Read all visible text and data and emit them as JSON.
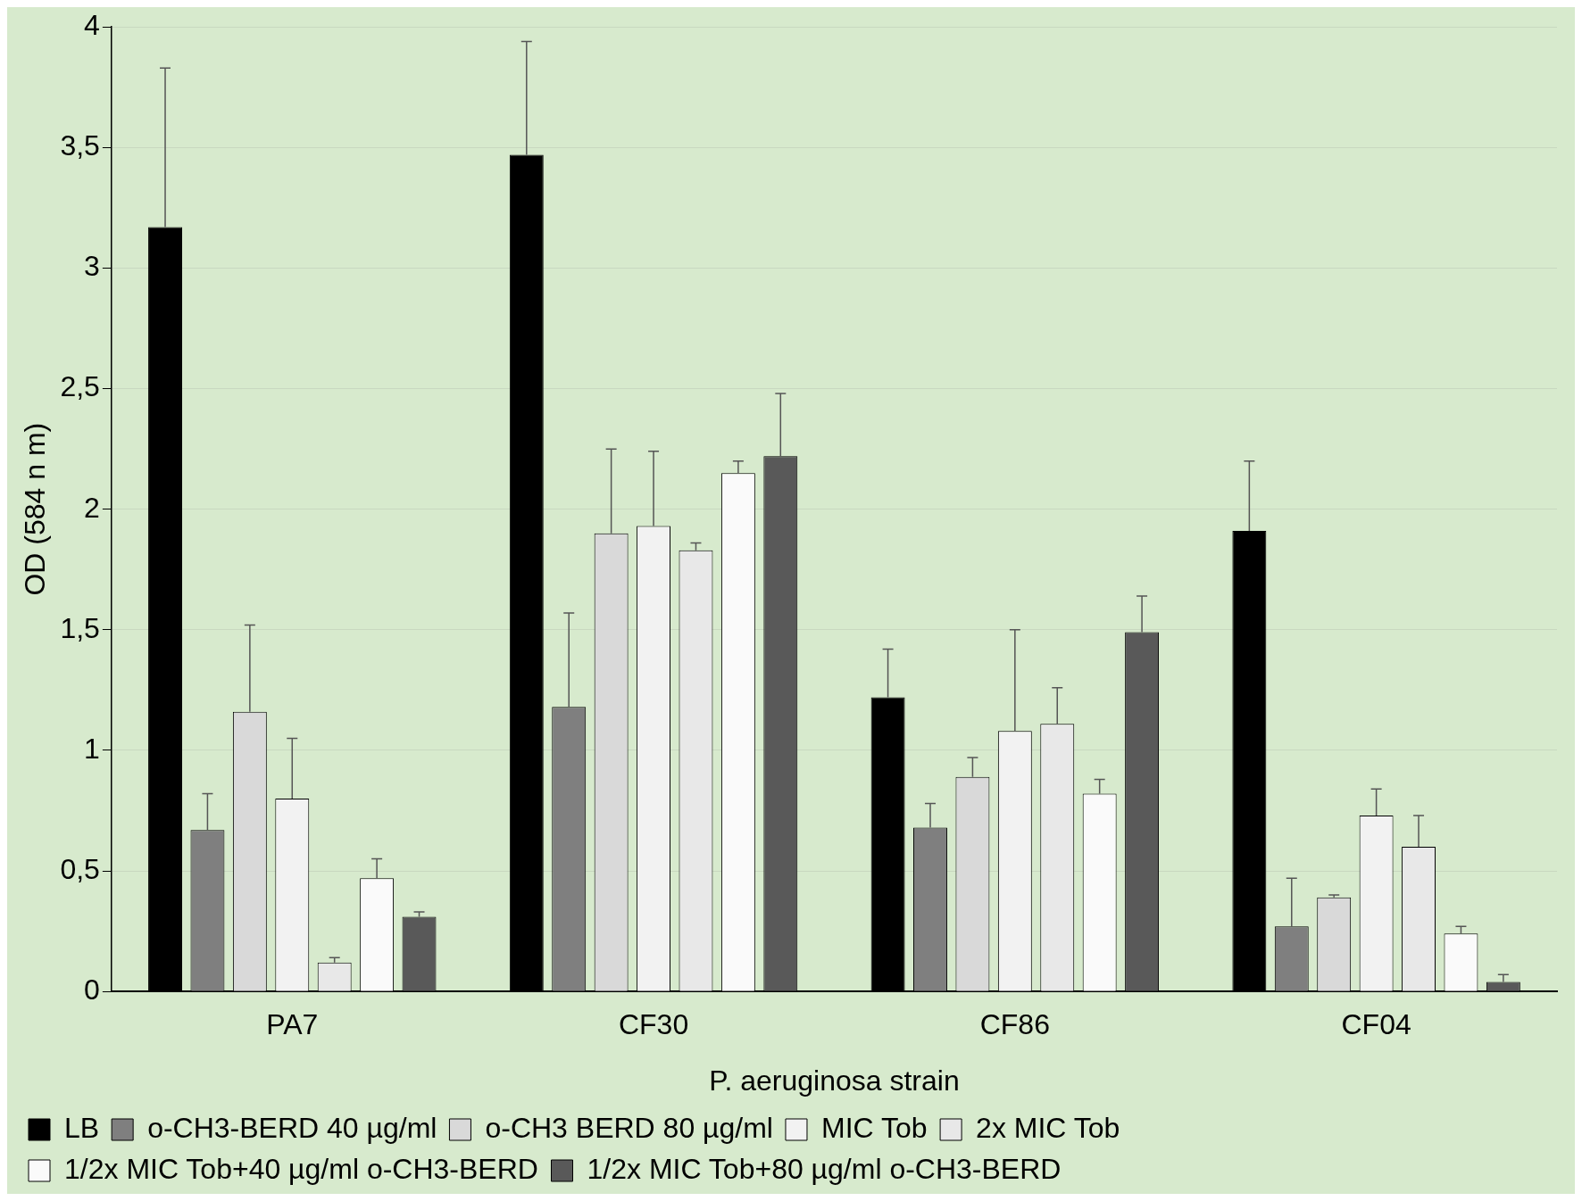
{
  "chart_data": {
    "type": "bar",
    "xlabel": "P. aeruginosa strain",
    "ylabel": "OD (584 n m)",
    "categories": [
      "PA7",
      "CF30",
      "CF86",
      "CF04"
    ],
    "series": [
      {
        "name": "LB",
        "color": "#000000",
        "values": [
          3.17,
          3.47,
          1.22,
          1.91
        ],
        "errors": [
          [
            3.17,
            3.83
          ],
          [
            3.47,
            3.94
          ],
          [
            1.22,
            1.42
          ],
          [
            1.91,
            2.2
          ]
        ]
      },
      {
        "name": "o-CH3-BERD 40 µg/ml",
        "color": "#7f7f7f",
        "values": [
          0.67,
          1.18,
          0.68,
          0.27
        ],
        "errors": [
          [
            0.67,
            0.82
          ],
          [
            1.18,
            1.57
          ],
          [
            0.68,
            0.78
          ],
          [
            0.27,
            0.47
          ]
        ]
      },
      {
        "name": "o-CH3 BERD 80 µg/ml",
        "color": "#d9d9d9",
        "values": [
          1.16,
          1.9,
          0.89,
          0.39
        ],
        "errors": [
          [
            1.16,
            1.52
          ],
          [
            1.9,
            2.25
          ],
          [
            0.89,
            0.97
          ],
          [
            0.39,
            0.4
          ]
        ]
      },
      {
        "name": "MIC Tob",
        "color": "#f2f2f2",
        "values": [
          0.8,
          1.93,
          1.08,
          0.73
        ],
        "errors": [
          [
            0.8,
            1.05
          ],
          [
            1.93,
            2.24
          ],
          [
            1.08,
            1.5
          ],
          [
            0.73,
            0.84
          ]
        ]
      },
      {
        "name": "2x MIC Tob",
        "color": "#e8e8e8",
        "values": [
          0.12,
          1.83,
          1.11,
          0.6
        ],
        "errors": [
          [
            0.12,
            0.14
          ],
          [
            1.83,
            1.86
          ],
          [
            1.11,
            1.26
          ],
          [
            0.6,
            0.73
          ]
        ]
      },
      {
        "name": "1/2x MIC Tob+40 µg/ml o-CH3-BERD",
        "color": "#fafafa",
        "values": [
          0.47,
          2.15,
          0.82,
          0.24
        ],
        "errors": [
          [
            0.47,
            0.55
          ],
          [
            2.15,
            2.2
          ],
          [
            0.82,
            0.88
          ],
          [
            0.24,
            0.27
          ]
        ]
      },
      {
        "name": "1/2x MIC Tob+80 µg/ml o-CH3-BERD",
        "color": "#595959",
        "values": [
          0.31,
          2.22,
          1.49,
          0.04
        ],
        "errors": [
          [
            0.31,
            0.33
          ],
          [
            2.22,
            2.48
          ],
          [
            1.49,
            1.64
          ],
          [
            0.04,
            0.07
          ]
        ]
      }
    ],
    "ylim": [
      0,
      4
    ],
    "yticks": [
      0,
      {
        "value": 0.5,
        "label": "0,5"
      },
      1,
      {
        "value": 1.5,
        "label": "1,5"
      },
      2,
      {
        "value": 2.5,
        "label": "2,5"
      },
      3,
      {
        "value": 3.5,
        "label": "3,5"
      },
      4
    ],
    "grid": "y",
    "legend": "bottom"
  }
}
